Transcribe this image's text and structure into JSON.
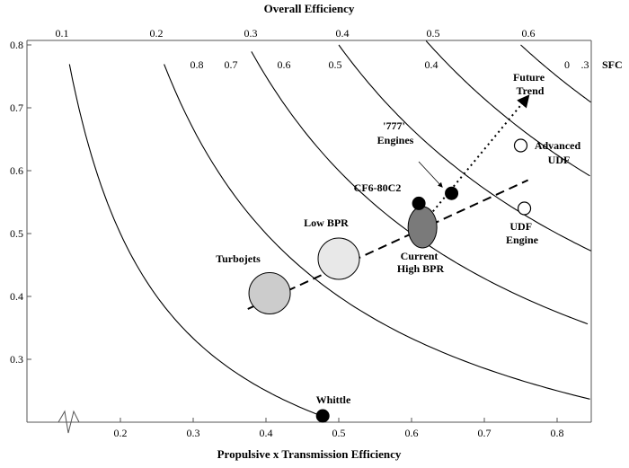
{
  "chart_data": {
    "type": "scatter",
    "title": "Overall Efficiency",
    "xlabel": "Propulsive x Transmission Efficiency",
    "ylabel": "",
    "xlim": [
      0.05,
      0.85
    ],
    "ylim": [
      0.2,
      0.8
    ],
    "x_ticks": [
      "0.2",
      "0.3",
      "0.4",
      "0.5",
      "0.6",
      "0.7",
      "0.8"
    ],
    "y_ticks": [
      "0.3",
      "0.4",
      "0.5",
      "0.6",
      "0.7",
      "0.8"
    ],
    "grid": false,
    "overall_efficiency_labels": [
      "0.1",
      "0.2",
      "0.3",
      "0.4",
      "0.5",
      "0.6"
    ],
    "sfc_label": "SFC",
    "sfc_values": [
      "0.8",
      "0.7",
      "0.6",
      "0.5",
      "0.4",
      "0",
      ".3"
    ],
    "curves": [
      {
        "overall_efficiency": 0.1,
        "x_start": 0.13,
        "x_end": 0.48
      },
      {
        "overall_efficiency": 0.2,
        "x_start": 0.26,
        "x_end": 0.86
      },
      {
        "overall_efficiency": 0.3,
        "x_start": 0.38,
        "x_end": 0.86
      },
      {
        "overall_efficiency": 0.4,
        "x_start": 0.5,
        "x_end": 0.86
      },
      {
        "overall_efficiency": 0.5,
        "x_start": 0.62,
        "x_end": 0.86
      },
      {
        "overall_efficiency": 0.6,
        "x_start": 0.75,
        "x_end": 0.86
      }
    ],
    "engines": [
      {
        "label": "Turbojets",
        "x": 0.405,
        "y": 0.405,
        "fill": "#cccccc",
        "shape": "large-circle"
      },
      {
        "label": "Low BPR",
        "x": 0.5,
        "y": 0.46,
        "fill": "#e8e8e8",
        "shape": "large-circle"
      },
      {
        "label": "Current High BPR",
        "x": 0.615,
        "y": 0.51,
        "fill": "#7a7a7a",
        "shape": "ellipse"
      },
      {
        "label": "CF6-80C2",
        "x": 0.61,
        "y": 0.548,
        "fill": "#000000",
        "shape": "dot"
      },
      {
        "label": "'777' Engines",
        "x": 0.655,
        "y": 0.564,
        "fill": "#000000",
        "shape": "dot"
      },
      {
        "label": "UDF Engine",
        "x": 0.755,
        "y": 0.54,
        "fill": "#ffffff",
        "shape": "open-dot"
      },
      {
        "label": "Advanced UDF",
        "x": 0.75,
        "y": 0.64,
        "fill": "#ffffff",
        "shape": "open-dot"
      },
      {
        "label": "Whittle",
        "x": 0.478,
        "y": 0.21,
        "fill": "#000000",
        "shape": "dot"
      }
    ],
    "trend_line": {
      "x": [
        0.375,
        0.76
      ],
      "y": [
        0.38,
        0.585
      ]
    },
    "future_trend": {
      "label": "Future Trend",
      "x": [
        0.62,
        0.76
      ],
      "y": [
        0.522,
        0.718
      ]
    }
  }
}
